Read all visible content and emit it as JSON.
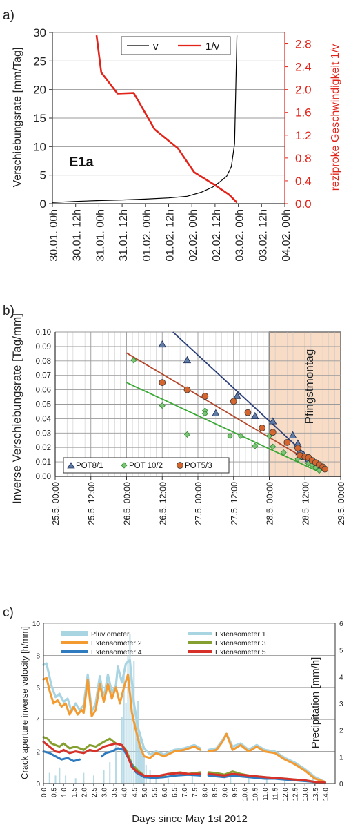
{
  "chart_data": [
    {
      "panel_label": "a)",
      "type": "line",
      "annotation": "E1a",
      "ylabel": "Verschiebungsrate [mm/Tag]",
      "y2label": "reziproke Geschwindigkeit 1/v",
      "ylim": [
        0,
        30
      ],
      "y2lim": [
        0,
        3
      ],
      "yticks": [
        "0",
        "5",
        "10",
        "15",
        "20",
        "25",
        "30"
      ],
      "y2ticks": [
        "0.0",
        "0.4",
        "0.8",
        "1.2",
        "1.6",
        "2.0",
        "2.4",
        "2.8"
      ],
      "x_tick_labels": [
        "30.01. 00h",
        "30.01. 12h",
        "31.01. 00h",
        "31.01. 12h",
        "01.02. 00h",
        "01.02. 12h",
        "02.02. 00h",
        "02.02. 12h",
        "03.02. 00h",
        "03.02. 12h",
        "04.02. 00h"
      ],
      "xlim_days": [
        0,
        5
      ],
      "legend_position": "top-center",
      "series": [
        {
          "name": "v",
          "color": "#000000",
          "axis": "left",
          "x_days": [
            0,
            0.5,
            1,
            1.5,
            2,
            2.5,
            2.9,
            3.2,
            3.45,
            3.6,
            3.75,
            3.85,
            3.92,
            3.97
          ],
          "values": [
            0.2,
            0.4,
            0.55,
            0.65,
            0.8,
            1.0,
            1.3,
            2.0,
            2.9,
            3.8,
            4.8,
            6.5,
            10.5,
            29.5
          ]
        },
        {
          "name": "1/v",
          "color": "#e2231a",
          "axis": "right",
          "x_days": [
            0.95,
            1.05,
            1.4,
            1.75,
            2.2,
            2.7,
            3.05,
            3.45,
            3.8,
            3.97
          ],
          "values": [
            2.95,
            2.3,
            1.93,
            1.94,
            1.3,
            0.97,
            0.55,
            0.35,
            0.16,
            0.02
          ]
        }
      ]
    },
    {
      "panel_label": "b)",
      "type": "scatter",
      "ylabel": "Inverse Verschiebungsrate [Tag/mm]",
      "ylim": [
        0,
        0.1
      ],
      "yticks": [
        "0.00",
        "0.01",
        "0.02",
        "0.03",
        "0.04",
        "0.05",
        "0.06",
        "0.07",
        "0.08",
        "0.09",
        "0.10"
      ],
      "x_tick_labels": [
        "25.5. 00:00",
        "25.5. 12:00",
        "26.5. 00:00",
        "26.5. 12:00",
        "27.5. 00:00",
        "27.5. 12:00",
        "28.5. 00:00",
        "28.5. 12:00",
        "29.5. 00:00"
      ],
      "xlim_days": [
        0,
        4
      ],
      "annotation": "Pfingstmontag",
      "shaded_region_days": [
        3,
        4
      ],
      "legend_position": "bottom-left",
      "series": [
        {
          "name": "POT8/1",
          "marker": "triangle",
          "color": "#2c3f7b",
          "x_days": [
            1.5,
            1.85,
            2.25,
            2.55,
            2.8,
            3.05,
            3.33,
            3.4,
            3.42,
            3.48,
            3.5,
            3.55,
            3.58,
            3.62,
            3.66,
            3.7,
            3.75
          ],
          "values": [
            0.0915,
            0.0805,
            0.0438,
            0.0558,
            0.0418,
            0.0382,
            0.0285,
            0.0228,
            0.0168,
            0.015,
            0.0135,
            0.012,
            0.011,
            0.0095,
            0.0085,
            0.0075,
            0.006
          ],
          "trend": {
            "x_days": [
              1.65,
              3.73
            ],
            "values": [
              0.1,
              0.005
            ]
          }
        },
        {
          "name": "POT 10/2",
          "marker": "diamond",
          "color": "#3aa935",
          "x_days": [
            1.1,
            1.5,
            1.85,
            2.1,
            2.1,
            2.45,
            2.6,
            2.8,
            3.0,
            3.05,
            3.2,
            3.4,
            3.55,
            3.6,
            3.65,
            3.7
          ],
          "values": [
            0.0805,
            0.049,
            0.029,
            0.0455,
            0.0435,
            0.028,
            0.028,
            0.021,
            0.028,
            0.0205,
            0.0165,
            0.012,
            0.009,
            0.008,
            0.006,
            0.004
          ],
          "trend": {
            "x_days": [
              1.0,
              3.7
            ],
            "values": [
              0.065,
              0.003
            ]
          }
        },
        {
          "name": "POT5/3",
          "marker": "circle",
          "color": "#d55a2a",
          "x_days": [
            1.5,
            1.85,
            2.1,
            2.5,
            2.7,
            2.9,
            3.05,
            3.25,
            3.4,
            3.43,
            3.5,
            3.55,
            3.6,
            3.65,
            3.7,
            3.75,
            3.78
          ],
          "values": [
            0.065,
            0.06,
            0.0555,
            0.052,
            0.0442,
            0.0335,
            0.0305,
            0.0235,
            0.0195,
            0.0145,
            0.0135,
            0.013,
            0.011,
            0.0095,
            0.008,
            0.0065,
            0.005
          ],
          "trend": {
            "x_days": [
              1.0,
              3.75
            ],
            "values": [
              0.0855,
              0.005
            ]
          }
        }
      ]
    },
    {
      "panel_label": "c)",
      "type": "line",
      "xlabel": "Days since May 1st 2012",
      "ylabel": "Crack aperture inverse velocity [h/mm]",
      "y2label": "Precipitation [mm/h]",
      "ylim": [
        0,
        10
      ],
      "y2lim": [
        0,
        6
      ],
      "yticks": [
        "0",
        "2",
        "4",
        "6",
        "8",
        "10"
      ],
      "y2ticks": [
        "0",
        "1",
        "2",
        "3",
        "4",
        "5",
        "6"
      ],
      "xlim": [
        0,
        14.5
      ],
      "x_tick_labels": [
        "0.0",
        "0.5",
        "1.0",
        "1.5",
        "2.0",
        "2.5",
        "3.0",
        "3.5",
        "4.0",
        "4.5",
        "5.0",
        "5.5",
        "6.0",
        "6.5",
        "7.0",
        "7.5",
        "8.0",
        "8.5",
        "9.0",
        "9.5",
        "10.0",
        "10.5",
        "11.0",
        "11.5",
        "12.0",
        "12.5",
        "13.0",
        "13.5",
        "14.0"
      ],
      "legend_position": "top",
      "series": [
        {
          "name": "Pluviometer",
          "color": "#a9d4e2",
          "type": "bar",
          "axis": "right",
          "x": [
            0.3,
            0.6,
            0.8,
            1.1,
            1.6,
            2.0,
            2.5,
            3.0,
            3.3,
            3.6,
            3.9,
            4.0,
            4.1,
            4.2,
            4.3,
            4.4,
            4.5,
            4.6,
            4.7,
            4.8,
            4.9,
            5.0,
            5.1,
            5.3,
            5.6,
            6.2,
            7.4,
            9.3,
            10.2,
            11.1,
            12.0,
            13.4
          ],
          "values": [
            0.4,
            0.3,
            0.6,
            0.3,
            0.2,
            0.4,
            0.3,
            0.5,
            0.8,
            1.5,
            2.5,
            4.2,
            3.0,
            4.8,
            5.6,
            3.8,
            4.6,
            2.6,
            3.1,
            1.7,
            1.4,
            1.1,
            0.7,
            0.5,
            0.3,
            0.2,
            0.4,
            0.3,
            0.2,
            0.2,
            0.2,
            0.2
          ]
        },
        {
          "name": "Extensometer 1",
          "color": "#a9d4e2",
          "segments": [
            {
              "x": [
                0.0,
                0.15,
                0.4,
                0.6,
                0.8,
                1.0,
                1.2,
                1.4,
                1.6,
                1.8,
                2.0,
                2.2,
                2.4,
                2.6,
                2.8,
                3.0,
                3.2,
                3.4,
                3.6,
                3.7,
                3.9,
                4.1,
                4.3,
                4.5,
                4.7,
                5.0,
                5.3,
                5.6,
                6.0,
                6.5,
                7.0,
                7.5,
                7.8
              ],
              "values": [
                7.4,
                7.5,
                6.1,
                5.4,
                5.6,
                5.1,
                5.3,
                4.5,
                5.0,
                4.6,
                4.9,
                6.8,
                4.5,
                5.0,
                6.7,
                5.3,
                6.8,
                5.7,
                6.1,
                7.3,
                6.3,
                7.5,
                7.7,
                5.0,
                3.5,
                2.2,
                1.8,
                2.0,
                1.8,
                2.1,
                2.2,
                2.4,
                2.2
              ]
            },
            {
              "x": [
                8.2,
                8.6,
                8.9,
                9.1,
                9.4,
                9.8,
                10.2,
                10.6,
                11.0,
                11.5,
                12.0,
                12.5,
                13.0,
                13.5,
                14.0
              ],
              "values": [
                2.1,
                2.2,
                2.7,
                3.1,
                2.3,
                2.5,
                2.1,
                2.4,
                2.1,
                2.0,
                1.6,
                1.3,
                0.9,
                0.4,
                0.1
              ]
            }
          ]
        },
        {
          "name": "Extensometer 2",
          "color": "#f39a31",
          "segments": [
            {
              "x": [
                0.0,
                0.15,
                0.3,
                0.5,
                0.7,
                0.9,
                1.1,
                1.3,
                1.5,
                1.7,
                1.9,
                2.0,
                2.2,
                2.4,
                2.6,
                2.8,
                3.0,
                3.2,
                3.4,
                3.6,
                3.8,
                4.0,
                4.2,
                4.4,
                4.6,
                4.8,
                5.0,
                5.3,
                5.6,
                6.0,
                6.5,
                7.0,
                7.5,
                7.8
              ],
              "values": [
                6.5,
                6.6,
                5.8,
                5.0,
                5.2,
                4.8,
                5.0,
                4.3,
                4.8,
                4.3,
                4.6,
                4.4,
                6.5,
                4.2,
                4.6,
                6.2,
                5.1,
                6.2,
                5.3,
                6.0,
                5.0,
                6.0,
                6.8,
                4.4,
                3.3,
                2.3,
                1.7,
                1.6,
                1.9,
                1.7,
                2.0,
                2.1,
                2.3,
                2.1
              ]
            },
            {
              "x": [
                8.2,
                8.6,
                8.9,
                9.1,
                9.4,
                9.8,
                10.2,
                10.6,
                11.0,
                11.5,
                12.0,
                12.5,
                13.0,
                13.5,
                14.0
              ],
              "values": [
                2.0,
                2.1,
                2.6,
                3.1,
                2.1,
                2.4,
                2.0,
                2.3,
                2.0,
                1.9,
                1.5,
                1.2,
                0.8,
                0.3,
                0.1
              ]
            }
          ]
        },
        {
          "name": "Extensometer 3",
          "color": "#86a030",
          "segments": [
            {
              "x": [
                0.0,
                0.2,
                0.4,
                0.6,
                0.8,
                1.0,
                1.3,
                1.6,
                2.0,
                2.3,
                2.6,
                3.0,
                3.3,
                3.6,
                3.9,
                4.1,
                4.4,
                4.7,
                5.0,
                5.4,
                5.8,
                6.2,
                6.8,
                7.2,
                7.8
              ],
              "values": [
                2.9,
                2.8,
                2.5,
                2.4,
                2.3,
                2.5,
                2.2,
                2.3,
                2.1,
                2.4,
                2.3,
                2.6,
                2.8,
                2.5,
                2.4,
                2.1,
                1.2,
                0.8,
                0.5,
                0.4,
                0.45,
                0.6,
                0.7,
                0.6,
                0.7
              ]
            },
            {
              "x": [
                8.2,
                8.6,
                9.0,
                9.4,
                9.8,
                10.2,
                10.6,
                11.0,
                11.5,
                12.0,
                12.5,
                13.0,
                13.5,
                14.0
              ],
              "values": [
                0.7,
                0.65,
                0.55,
                0.75,
                0.6,
                0.5,
                0.45,
                0.4,
                0.35,
                0.3,
                0.25,
                0.2,
                0.1,
                0.05
              ]
            }
          ]
        },
        {
          "name": "Extensometer 4",
          "color": "#2e7bbf",
          "segments": [
            {
              "x": [
                0.0,
                0.3,
                0.6,
                0.9,
                1.2,
                1.5,
                1.8
              ],
              "values": [
                2.0,
                1.9,
                1.7,
                1.5,
                1.6,
                1.4,
                1.5
              ]
            },
            {
              "x": [
                2.9,
                3.1,
                3.4,
                3.7,
                4.0,
                4.3,
                4.6,
                5.0,
                5.5,
                6.0,
                6.6,
                7.2,
                7.8
              ],
              "values": [
                1.7,
                1.9,
                2.0,
                2.2,
                2.1,
                1.4,
                0.7,
                0.4,
                0.35,
                0.4,
                0.5,
                0.55,
                0.5
              ]
            },
            {
              "x": [
                8.2,
                8.6,
                9.0,
                9.4,
                9.8,
                10.2,
                10.6,
                11.0,
                11.5,
                12.0,
                12.5,
                13.0,
                13.5,
                14.0
              ],
              "values": [
                0.5,
                0.45,
                0.4,
                0.5,
                0.45,
                0.4,
                0.35,
                0.3,
                0.3,
                0.25,
                0.2,
                0.15,
                0.1,
                0.05
              ]
            }
          ]
        },
        {
          "name": "Extensometer 5",
          "color": "#d8312a",
          "segments": [
            {
              "x": [
                0.0,
                0.2,
                0.4,
                0.6,
                0.8,
                1.0,
                1.3,
                1.6,
                2.0,
                2.3,
                2.6,
                3.0,
                3.3,
                3.6,
                3.9,
                4.1,
                4.4,
                4.7,
                5.0,
                5.4,
                5.8,
                6.2,
                6.8,
                7.2,
                7.8
              ],
              "values": [
                2.6,
                2.4,
                2.2,
                2.0,
                1.95,
                2.1,
                1.9,
                2.0,
                1.9,
                2.1,
                2.0,
                2.3,
                2.4,
                2.5,
                2.4,
                2.0,
                1.0,
                0.7,
                0.5,
                0.45,
                0.5,
                0.6,
                0.65,
                0.6,
                0.6
              ]
            },
            {
              "x": [
                8.2,
                8.6,
                9.0,
                9.4,
                9.8,
                10.2,
                10.6,
                11.0,
                11.5,
                12.0,
                12.5,
                13.0,
                13.5,
                14.0
              ],
              "values": [
                0.6,
                0.55,
                0.5,
                0.6,
                0.55,
                0.5,
                0.45,
                0.4,
                0.35,
                0.3,
                0.25,
                0.2,
                0.1,
                0.05
              ]
            }
          ]
        }
      ]
    }
  ]
}
